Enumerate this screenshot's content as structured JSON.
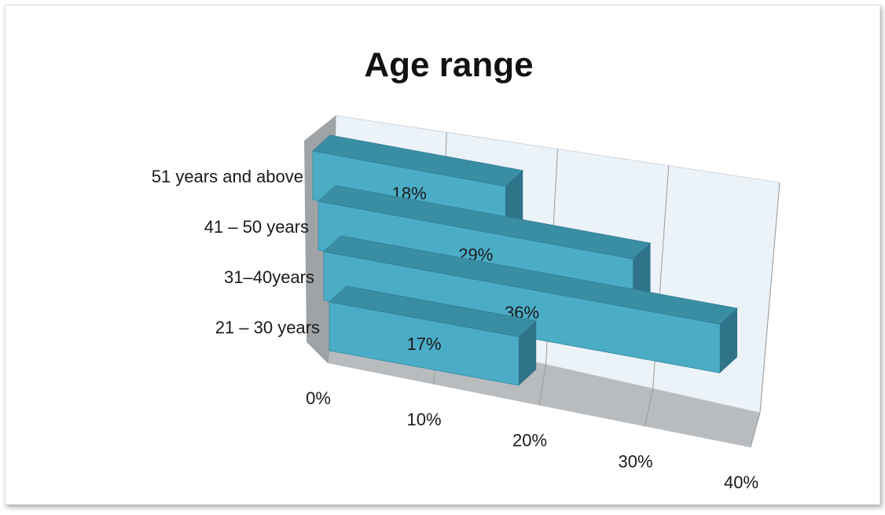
{
  "chart_data": {
    "type": "bar",
    "orientation": "horizontal",
    "style": "3d",
    "title": "Age range",
    "xlabel": "",
    "ylabel": "",
    "categories": [
      "21 – 30 years",
      "31–40years",
      "41 – 50 years",
      "51 years and above"
    ],
    "values": [
      17,
      36,
      29,
      18
    ],
    "data_labels": [
      "17%",
      "36%",
      "29%",
      "18%"
    ],
    "xlim": [
      0,
      40
    ],
    "x_ticks": [
      0,
      10,
      20,
      30,
      40
    ],
    "x_tick_labels": [
      "0%",
      "10%",
      "20%",
      "30%",
      "40%"
    ],
    "grid": true,
    "legend": "none",
    "colors": {
      "bar_front": "#4bacc6",
      "bar_top": "#3a8ea3",
      "bar_side": "#2f7388",
      "wall": "#ebf2f8",
      "floor": "#b9bcbf",
      "side_wall": "#a0a3a6",
      "gridline": "#9a9a9a"
    }
  }
}
